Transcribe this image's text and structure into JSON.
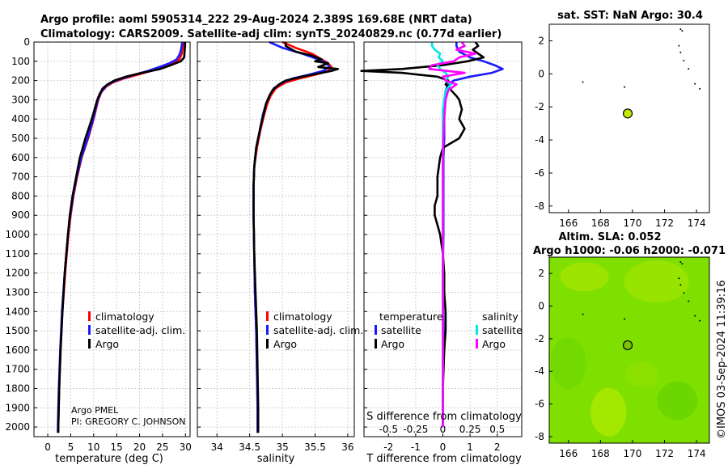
{
  "header": {
    "line1": "Argo profile: aoml 5905314_222 29-Aug-2024 2.389S 169.68E (NRT data)",
    "line2": "Climatology: CARS2009. Satellite-adj clim: synTS_20240829.nc (0.77d earlier)"
  },
  "colors": {
    "argo": "#000000",
    "climatology": "#ff0000",
    "satellite": "#1a1aff",
    "sal_argo": "#ff00ff",
    "sal_sat": "#00e5e5",
    "map_fill": "#7fe000",
    "marker": "#c6e600"
  },
  "chart_data": [
    {
      "id": "temperature",
      "type": "line",
      "xlabel": "temperature (deg C)",
      "ylabel": "depth",
      "xlim": [
        -3,
        31
      ],
      "ylim": [
        2050,
        0
      ],
      "xticks": [
        "0",
        "5",
        "10",
        "15",
        "20",
        "25",
        "30"
      ],
      "xtick_values": [
        0,
        5,
        10,
        15,
        20,
        25,
        30
      ],
      "yticks": [
        "0",
        "100",
        "200",
        "300",
        "400",
        "500",
        "600",
        "700",
        "800",
        "900",
        "1000",
        "1100",
        "1200",
        "1300",
        "1400",
        "1500",
        "1600",
        "1700",
        "1800",
        "1900",
        "2000"
      ],
      "ytick_values": [
        0,
        100,
        200,
        300,
        400,
        500,
        600,
        700,
        800,
        900,
        1000,
        1100,
        1200,
        1300,
        1400,
        1500,
        1600,
        1700,
        1800,
        1900,
        2000
      ],
      "legend": [
        "climatology",
        "satellite-adj. clim.",
        "Argo"
      ],
      "credit": [
        "Argo PMEL",
        "PI: GREGORY C. JOHNSON"
      ],
      "series": [
        {
          "name": "climatology",
          "color": "#ff0000",
          "depth": [
            0,
            30,
            60,
            90,
            110,
            130,
            150,
            170,
            190,
            210,
            230,
            260,
            300,
            350,
            400,
            500,
            600,
            700,
            800,
            900,
            1000,
            1200,
            1400,
            1600,
            1800,
            2000,
            2030
          ],
          "values": [
            29.5,
            29.4,
            29.2,
            28.7,
            27,
            25,
            22.5,
            19.5,
            16.5,
            14.2,
            12.8,
            11.7,
            11.0,
            10.5,
            10.0,
            8.8,
            7.4,
            6.4,
            5.6,
            5.0,
            4.5,
            3.8,
            3.2,
            2.8,
            2.5,
            2.3,
            2.3
          ]
        },
        {
          "name": "satellite-adj. clim.",
          "color": "#1a1aff",
          "depth": [
            0,
            30,
            60,
            90,
            110,
            130,
            150,
            170,
            190,
            210,
            230,
            260,
            300,
            350,
            400,
            500,
            600,
            700,
            800,
            900,
            1000,
            1200,
            1400,
            1600,
            1800,
            2000,
            2030
          ],
          "values": [
            29.3,
            29.1,
            28.8,
            28.1,
            26.5,
            24.3,
            21.8,
            18.8,
            16.0,
            13.9,
            12.6,
            11.6,
            10.9,
            10.4,
            9.9,
            8.7,
            7.3,
            6.3,
            5.5,
            4.9,
            4.4,
            3.7,
            3.1,
            2.7,
            2.4,
            2.2,
            2.2
          ]
        },
        {
          "name": "Argo",
          "color": "#000000",
          "depth": [
            0,
            20,
            50,
            80,
            100,
            120,
            140,
            160,
            180,
            200,
            220,
            240,
            270,
            300,
            350,
            400,
            500,
            600,
            700,
            800,
            900,
            1000,
            1200,
            1400,
            1600,
            1800,
            2000,
            2030
          ],
          "values": [
            29.9,
            29.9,
            29.8,
            29.7,
            29.0,
            26.8,
            24.5,
            20.5,
            17.0,
            14.5,
            13.0,
            12.0,
            11.3,
            10.8,
            10.2,
            9.6,
            8.2,
            7.0,
            6.2,
            5.4,
            4.8,
            4.4,
            3.7,
            3.2,
            2.8,
            2.5,
            2.3,
            2.3
          ]
        }
      ]
    },
    {
      "id": "salinity",
      "type": "line",
      "xlabel": "salinity",
      "ylim": [
        2050,
        0
      ],
      "xlim": [
        33.7,
        36.1
      ],
      "xticks": [
        "34",
        "34.5",
        "35",
        "35.5",
        "36"
      ],
      "xtick_values": [
        34,
        34.5,
        35,
        35.5,
        36
      ],
      "legend": [
        "climatology",
        "satellite-adj. clim.",
        "Argo"
      ],
      "series": [
        {
          "name": "climatology",
          "color": "#ff0000",
          "depth": [
            0,
            30,
            60,
            90,
            110,
            130,
            150,
            170,
            190,
            210,
            240,
            280,
            320,
            380,
            450,
            550,
            650,
            750,
            900,
            1100,
            1300,
            1500,
            1700,
            1900,
            2030
          ],
          "values": [
            35.0,
            35.2,
            35.45,
            35.6,
            35.7,
            35.75,
            35.7,
            35.5,
            35.25,
            35.05,
            34.9,
            34.82,
            34.77,
            34.72,
            34.67,
            34.61,
            34.57,
            34.56,
            34.56,
            34.57,
            34.58,
            34.6,
            34.61,
            34.62,
            34.62
          ]
        },
        {
          "name": "satellite-adj. clim.",
          "color": "#1a1aff",
          "depth": [
            0,
            30,
            60,
            90,
            110,
            130,
            150,
            170,
            190,
            210,
            240,
            280,
            320,
            380,
            450,
            550,
            650,
            750,
            900,
            1100,
            1300,
            1500,
            1700,
            1900,
            2030
          ],
          "values": [
            34.8,
            35.0,
            35.3,
            35.55,
            35.68,
            35.72,
            35.62,
            35.4,
            35.15,
            35.0,
            34.87,
            34.8,
            34.75,
            34.7,
            34.66,
            34.6,
            34.57,
            34.56,
            34.56,
            34.57,
            34.58,
            34.6,
            34.61,
            34.62,
            34.62
          ]
        },
        {
          "name": "Argo",
          "color": "#000000",
          "depth": [
            0,
            20,
            50,
            70,
            90,
            100,
            110,
            130,
            140,
            150,
            160,
            180,
            200,
            220,
            250,
            280,
            320,
            380,
            450,
            550,
            650,
            750,
            900,
            1100,
            1300,
            1500,
            1700,
            1900,
            2030
          ],
          "values": [
            35.05,
            35.05,
            35.2,
            35.45,
            35.6,
            35.5,
            35.7,
            35.55,
            35.85,
            35.75,
            35.6,
            35.3,
            35.05,
            34.95,
            34.85,
            34.8,
            34.75,
            34.71,
            34.66,
            34.6,
            34.57,
            34.56,
            34.56,
            34.57,
            34.59,
            34.61,
            34.62,
            34.63,
            34.63
          ]
        }
      ]
    },
    {
      "id": "difference",
      "type": "line",
      "xlabel": "T difference from climatology",
      "x2label": "S difference from climatology",
      "ylim": [
        2050,
        0
      ],
      "xlim": [
        -2.9,
        2.9
      ],
      "xticks": [
        "-2",
        "-1",
        "0",
        "1",
        "2"
      ],
      "xtick_values": [
        -2,
        -1,
        0,
        1,
        2
      ],
      "x2ticks": [
        "-0.5",
        "-0.25",
        "0",
        "0.25",
        "0.5"
      ],
      "x2tick_values": [
        -0.5,
        -0.25,
        0,
        0.25,
        0.5
      ],
      "legend_titles": [
        "temperature",
        "salinity"
      ],
      "legend_t": [
        "satellite",
        "Argo"
      ],
      "legend_s": [
        "satellite",
        "Argo"
      ],
      "series": [
        {
          "name": "T satellite",
          "color": "#1a1aff",
          "depth": [
            0,
            20,
            50,
            80,
            100,
            120,
            140,
            160,
            180,
            200,
            220,
            250,
            300,
            350,
            400,
            500,
            600,
            800,
            1000,
            1200,
            1500,
            1800,
            2000
          ],
          "values": [
            0.5,
            0.5,
            0.6,
            1.0,
            1.5,
            1.9,
            2.2,
            1.8,
            1.0,
            0.4,
            0.2,
            0.1,
            0.1,
            0.05,
            0.05,
            0.05,
            0.02,
            0.02,
            0.02,
            0.0,
            0.02,
            0.0,
            0.0
          ]
        },
        {
          "name": "T Argo",
          "color": "#000000",
          "depth": [
            0,
            20,
            40,
            60,
            80,
            100,
            120,
            140,
            150,
            160,
            180,
            200,
            220,
            250,
            280,
            300,
            350,
            400,
            450,
            500,
            550,
            600,
            700,
            800,
            850,
            900,
            950,
            1000,
            1100,
            1200,
            1300,
            1400,
            1500,
            1600,
            1800,
            2000
          ],
          "values": [
            1.2,
            1.3,
            1.1,
            1.3,
            1.5,
            0.9,
            0.0,
            -1.5,
            -3.0,
            -1.5,
            -0.2,
            0.2,
            0.1,
            0.3,
            0.5,
            0.6,
            0.7,
            0.6,
            0.8,
            0.6,
            0.0,
            -0.1,
            -0.2,
            -0.2,
            -0.3,
            -0.3,
            -0.2,
            -0.1,
            0.0,
            0.05,
            0.05,
            0.1,
            0.1,
            0.05,
            0.0,
            0.0
          ]
        },
        {
          "name": "S satellite",
          "color": "#00e5e5",
          "depth": [
            0,
            20,
            40,
            60,
            80,
            100,
            120,
            140,
            160,
            180,
            200,
            220,
            250,
            300,
            350,
            400,
            500,
            600,
            800,
            1000,
            1200,
            1500,
            1800,
            2000
          ],
          "values": [
            -0.4,
            -0.4,
            -0.3,
            -0.1,
            -0.15,
            0.0,
            -0.2,
            -0.1,
            0.1,
            0.2,
            0.1,
            0.3,
            0.1,
            0.05,
            0.0,
            0.0,
            0.0,
            0.0,
            0.0,
            0.0,
            0.0,
            0.0,
            0.0,
            0.0
          ]
        },
        {
          "name": "S Argo",
          "color": "#ff00ff",
          "depth": [
            0,
            20,
            40,
            60,
            80,
            100,
            120,
            140,
            160,
            180,
            200,
            220,
            250,
            300,
            400,
            500,
            600,
            800,
            1000,
            1200,
            1500,
            1800,
            2000
          ],
          "values": [
            0.7,
            0.8,
            0.5,
            1.2,
            0.6,
            0.4,
            -0.4,
            -0.5,
            0.8,
            0.0,
            0.1,
            0.5,
            0.2,
            0.1,
            0.05,
            0.02,
            0.0,
            0.0,
            0.0,
            0.0,
            0.0,
            0.0,
            0.0
          ]
        }
      ]
    }
  ],
  "maps": {
    "sst": {
      "title": "sat. SST: NaN Argo: 30.4",
      "xticks": [
        "166",
        "168",
        "170",
        "172",
        "174"
      ],
      "yticks": [
        "2",
        "0",
        "-2",
        "-4",
        "-6",
        "-8"
      ],
      "marker_lon": 169.7,
      "marker_lat": -2.4
    },
    "sla": {
      "title1": "Altim. SLA: 0.052",
      "title2": "Argo h1000: -0.06 h2000: -0.071",
      "xticks": [
        "166",
        "168",
        "170",
        "172",
        "174"
      ],
      "yticks": [
        "2",
        "0",
        "-2",
        "-4",
        "-6",
        "-8"
      ],
      "marker_lon": 169.7,
      "marker_lat": -2.4
    }
  },
  "footer": {
    "stamp": "©IMOS 03-Sep-2024 11:39:16"
  }
}
